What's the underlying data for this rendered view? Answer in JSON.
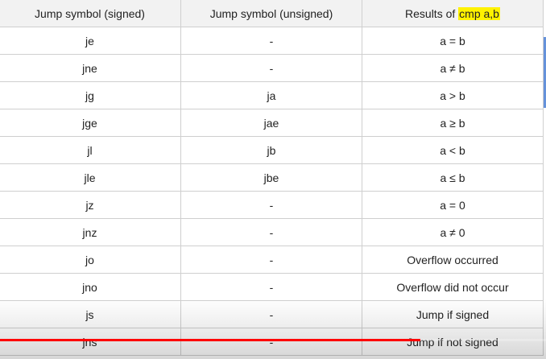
{
  "table": {
    "headers": {
      "signed": "Jump symbol (signed)",
      "unsigned": "Jump symbol (unsigned)",
      "results_prefix": "Results of ",
      "results_highlight": "cmp a,b"
    },
    "rows": [
      {
        "signed": "je",
        "unsigned": "-",
        "result": "a = b"
      },
      {
        "signed": "jne",
        "unsigned": "-",
        "result": "a ≠ b"
      },
      {
        "signed": "jg",
        "unsigned": "ja",
        "result": "a > b"
      },
      {
        "signed": "jge",
        "unsigned": "jae",
        "result": "a ≥ b"
      },
      {
        "signed": "jl",
        "unsigned": "jb",
        "result": "a < b"
      },
      {
        "signed": "jle",
        "unsigned": "jbe",
        "result": "a ≤ b"
      },
      {
        "signed": "jz",
        "unsigned": "-",
        "result": "a = 0"
      },
      {
        "signed": "jnz",
        "unsigned": "-",
        "result": "a ≠ 0"
      },
      {
        "signed": "jo",
        "unsigned": "-",
        "result": "Overflow occurred"
      },
      {
        "signed": "jno",
        "unsigned": "-",
        "result": "Overflow did not occur"
      },
      {
        "signed": "js",
        "unsigned": "-",
        "result": "Jump if signed"
      },
      {
        "signed": "jns",
        "unsigned": "-",
        "result": "Jump if not signed"
      }
    ]
  },
  "video": {
    "progress_fraction": 0.77,
    "progress_color": "#ff0000"
  },
  "colors": {
    "highlight": "#fff200",
    "scroll_indicator": "#4a7fd4"
  }
}
